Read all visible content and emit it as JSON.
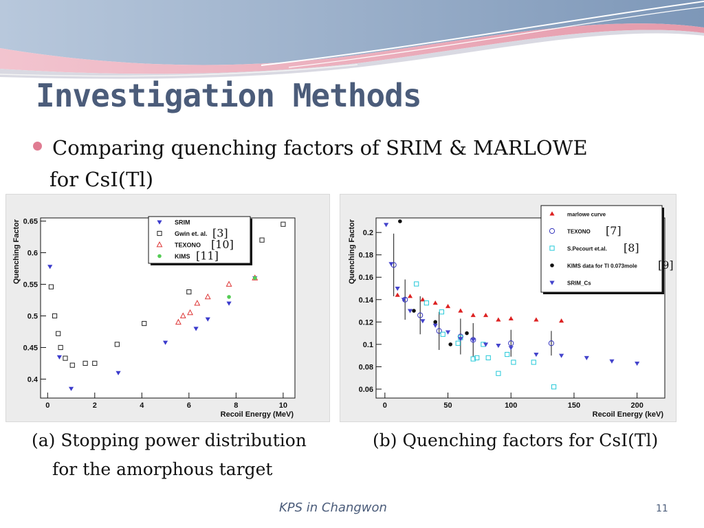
{
  "slide": {
    "title": "Investigation Methods",
    "bullet_line1": "Comparing quenching factors of SRIM & MARLOWE",
    "bullet_line2": "for CsI(Tl)",
    "caption_a_line1": "(a) Stopping power distribution",
    "caption_a_line2": "for the amorphous target",
    "caption_b": "(b) Quenching factors for CsI(Tl)",
    "footer": "KPS in Changwon",
    "page_number": "11",
    "accent_color": "#e07c92",
    "title_color": "#4b5c7a"
  },
  "chart_data": [
    {
      "type": "scatter",
      "xlabel": "Recoil Energy (MeV)",
      "ylabel": "Quenching Factor",
      "xlim": [
        -0.3,
        10.5
      ],
      "ylim": [
        0.37,
        0.655
      ],
      "xticks": [
        0,
        2,
        4,
        6,
        8,
        10
      ],
      "yticks": [
        0.4,
        0.45,
        0.5,
        0.55,
        0.6,
        0.65
      ],
      "ytick_labels": [
        "0.4",
        "0.45",
        "0.5",
        "0.55",
        "0.6",
        "0.65"
      ],
      "legend_position": "top-right",
      "series": [
        {
          "name": "SRIM",
          "marker": "triangle-down",
          "color": "#3b3bcc",
          "x": [
            0.1,
            0.5,
            1.0,
            3.0,
            5.0,
            6.3,
            6.8,
            7.7,
            8.8
          ],
          "y": [
            0.578,
            0.435,
            0.385,
            0.41,
            0.458,
            0.48,
            0.495,
            0.52,
            0.56
          ]
        },
        {
          "name": "Gwin et. al.",
          "marker": "open-square",
          "color": "#222222",
          "x": [
            0.15,
            0.3,
            0.45,
            0.55,
            0.75,
            1.05,
            1.6,
            2.0,
            2.95,
            4.1,
            6.0,
            9.1,
            10.0
          ],
          "y": [
            0.546,
            0.5,
            0.472,
            0.45,
            0.433,
            0.422,
            0.425,
            0.425,
            0.455,
            0.488,
            0.538,
            0.62,
            0.645
          ]
        },
        {
          "name": "TEXONO",
          "marker": "open-triangle",
          "color": "#dd3333",
          "x": [
            5.55,
            5.75,
            6.05,
            6.35,
            6.8,
            7.7,
            8.8
          ],
          "y": [
            0.49,
            0.5,
            0.505,
            0.52,
            0.53,
            0.55,
            0.56
          ]
        },
        {
          "name": "KIMS",
          "marker": "filled-circle",
          "color": "#55cc55",
          "x": [
            7.7,
            8.8
          ],
          "y": [
            0.53,
            0.56
          ]
        }
      ],
      "legend_refs": [
        "",
        "[3]",
        "[10]",
        "[11]"
      ]
    },
    {
      "type": "scatter",
      "xlabel": "Recoil Energy (keV)",
      "ylabel": "Quenching Factor",
      "xlim": [
        -7,
        222
      ],
      "ylim": [
        0.052,
        0.213
      ],
      "xticks": [
        0,
        50,
        100,
        150,
        200
      ],
      "yticks": [
        0.06,
        0.08,
        0.1,
        0.12,
        0.14,
        0.16,
        0.18,
        0.2
      ],
      "ytick_labels": [
        "0.06",
        "0.08",
        "0.1",
        "0.12",
        "0.14",
        "0.16",
        "0.18",
        "0.2"
      ],
      "legend_position": "top-right",
      "series": [
        {
          "name": "marlowe curve",
          "marker": "filled-triangle",
          "color": "#dd2222",
          "x": [
            10,
            20,
            30,
            40,
            50,
            60,
            70,
            80,
            90,
            100,
            120,
            140
          ],
          "y": [
            0.144,
            0.143,
            0.14,
            0.137,
            0.134,
            0.13,
            0.126,
            0.126,
            0.122,
            0.123,
            0.122,
            0.121
          ]
        },
        {
          "name": "TEXONO",
          "marker": "open-circle",
          "color": "#3333bb",
          "x": [
            7,
            16,
            28,
            43,
            60,
            70,
            100,
            132
          ],
          "y": [
            0.171,
            0.14,
            0.126,
            0.112,
            0.107,
            0.104,
            0.101,
            0.101
          ],
          "err": [
            0.028,
            0.018,
            0.017,
            0.017,
            0.016,
            0.015,
            0.012,
            0.011
          ]
        },
        {
          "name": "S.Pecourt et.al.",
          "marker": "open-square",
          "color": "#22c8d8",
          "x": [
            25,
            33,
            45,
            46,
            58,
            60,
            70,
            73,
            78,
            82,
            90,
            97,
            102,
            118,
            134
          ],
          "y": [
            0.154,
            0.137,
            0.129,
            0.109,
            0.101,
            0.106,
            0.087,
            0.088,
            0.1,
            0.088,
            0.074,
            0.091,
            0.084,
            0.084,
            0.062
          ]
        },
        {
          "name": "KIMS data for Tl 0.073mole",
          "marker": "filled-circle",
          "color": "#111111",
          "x": [
            12,
            23,
            40,
            52,
            65
          ],
          "y": [
            0.21,
            0.13,
            0.12,
            0.1,
            0.11
          ]
        },
        {
          "name": "SRIM_Cs",
          "marker": "triangle-down",
          "color": "#4444cc",
          "x": [
            1,
            5,
            10,
            15,
            20,
            30,
            40,
            50,
            60,
            70,
            80,
            90,
            100,
            120,
            140,
            160,
            180,
            200
          ],
          "y": [
            0.207,
            0.172,
            0.15,
            0.14,
            0.13,
            0.121,
            0.117,
            0.111,
            0.105,
            0.104,
            0.1,
            0.099,
            0.097,
            0.091,
            0.09,
            0.088,
            0.085,
            0.083
          ]
        }
      ],
      "legend_refs": [
        "",
        "[7]",
        "[8]",
        "[9]",
        ""
      ]
    }
  ]
}
